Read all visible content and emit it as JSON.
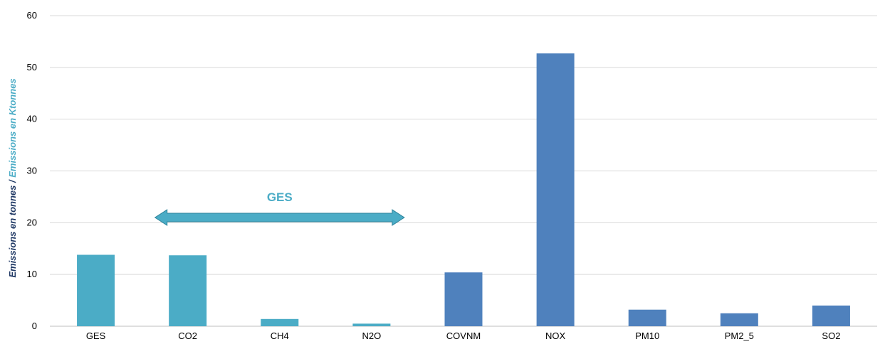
{
  "chart_data": {
    "type": "bar",
    "categories": [
      "GES",
      "CO2",
      "CH4",
      "N2O",
      "COVNM",
      "NOX",
      "PM10",
      "PM2_5",
      "SO2"
    ],
    "values": [
      13.8,
      13.7,
      1.4,
      0.5,
      10.4,
      52.7,
      3.2,
      2.5,
      4.0
    ],
    "category_group": [
      "ges",
      "ges",
      "ges",
      "ges",
      "other",
      "other",
      "other",
      "other",
      "other"
    ],
    "ylim": [
      0,
      60
    ],
    "yticks": [
      0,
      10,
      20,
      30,
      40,
      50,
      60
    ],
    "ylabel_part1": "Emissions en tonnes",
    "ylabel_sep": " / ",
    "ylabel_part2": "Emissions en Ktonnes",
    "annotation": {
      "text": "GES",
      "arrow_from_category": "CO2",
      "arrow_to_category": "N2O",
      "arrow_y": 21
    },
    "grid": true,
    "legend": "none",
    "colors": {
      "ges": "#4bacc6",
      "other": "#4f81bd",
      "ylabel_part1": "#1f3864",
      "ylabel_part2": "#4bacc6",
      "annotation_text": "#4bacc6",
      "arrow_fill": "#4bacc6",
      "arrow_stroke": "#31859c",
      "grid": "#d9d9d9",
      "axis": "#bfbfbf"
    }
  }
}
